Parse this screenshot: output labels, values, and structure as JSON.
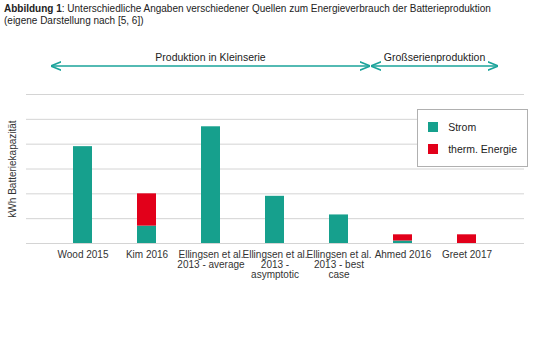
{
  "chart_data": {
    "type": "bar",
    "title": "Abbildung 1: Unterschiedliche Angaben verschiedener Quellen zum Energieverbrauch der Batterieproduktion",
    "subtitle": "(eigene Darstellung nach [5, 6])",
    "y_label": "kWh Batteriekapazität",
    "categories": [
      "Wood 2015",
      "Kim 2016",
      "Ellingsen et al.\n2013 - average",
      "Ellingsen et al.\n2013 -\nasymptotic",
      "Ellingsen et al.\n2013 - best\ncase",
      "Ahmed 2016",
      "Greet 2017"
    ],
    "series": [
      {
        "name": "Strom",
        "color": "#16a08d",
        "values": [
          3.9,
          0.7,
          4.7,
          1.9,
          1.15,
          0.1,
          0
        ]
      },
      {
        "name": "therm. Energie",
        "color": "#e2001a",
        "values": [
          0,
          1.3,
          0,
          0,
          0,
          0.25,
          0.35
        ]
      }
    ],
    "stacked": true,
    "ylim": [
      0,
      6
    ],
    "yticks": [
      0,
      1,
      2,
      3,
      4,
      5,
      6
    ],
    "grid": true,
    "tick_labels": "x",
    "legend": "top-right",
    "annotations": [
      {
        "text": "Produktion in Kleinserie",
        "from": "Wood 2015",
        "to": "Ellingsen et al.\n2013 - best\ncase"
      },
      {
        "text": "Großserienproduktion",
        "from": "Ahmed 2016",
        "to": "Greet 2017"
      }
    ]
  }
}
